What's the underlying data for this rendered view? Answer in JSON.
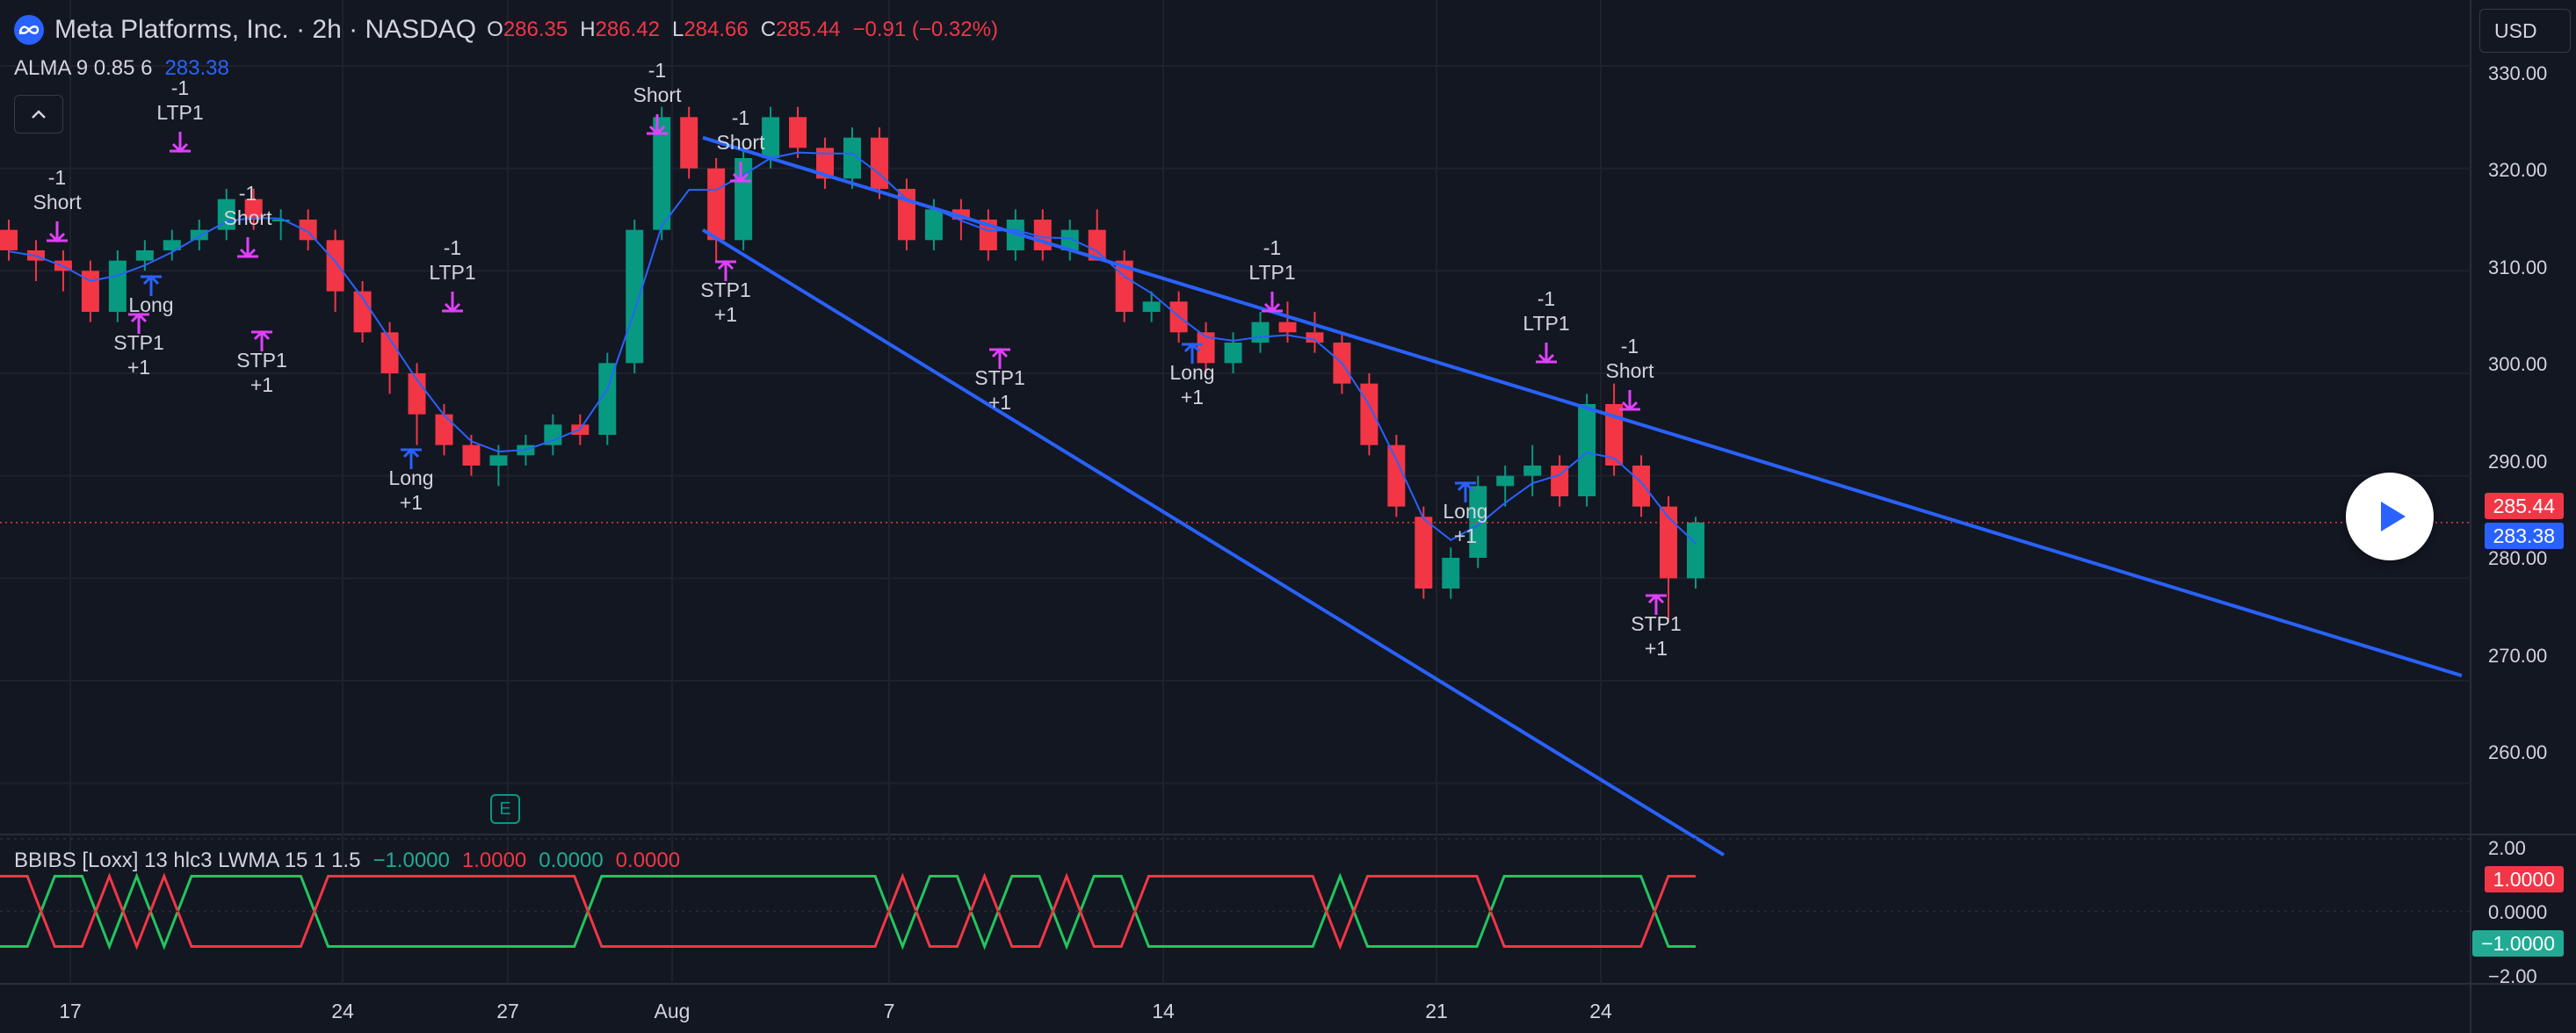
{
  "header": {
    "symbol": "Meta Platforms, Inc. · 2h · NASDAQ",
    "o_label": "O",
    "o_value": "286.35",
    "h_label": "H",
    "h_value": "286.42",
    "l_label": "L",
    "l_value": "284.66",
    "c_label": "C",
    "c_value": "285.44",
    "change": "−0.91 (−0.32%)"
  },
  "indicator1": {
    "name": "ALMA 9 0.85 6",
    "value": "283.38"
  },
  "indicator2": {
    "name": "BBIBS [Loxx] 13 hlc3 LWMA 15 1 1.5",
    "v1": "−1.0000",
    "v2": "1.0000",
    "v3": "0.0000",
    "v4": "0.0000"
  },
  "currency": "USD",
  "price_axis": [
    "330.00",
    "320.00",
    "310.00",
    "300.00",
    "290.00",
    "280.00",
    "270.00",
    "260.00"
  ],
  "price_tags": {
    "last": "285.44",
    "alma": "283.38"
  },
  "osc_axis": [
    "2.00",
    "0.0000",
    "−2.00"
  ],
  "osc_tags": {
    "red": "1.0000",
    "green": "−1.0000"
  },
  "time_axis": [
    "17",
    "24",
    "27",
    "Aug",
    "7",
    "14",
    "21",
    "24"
  ],
  "event_badge": "E",
  "colors": {
    "bg": "#131722",
    "up": "#089981",
    "down": "#f23645",
    "alma": "#2962ff",
    "signal": "#e040fb"
  },
  "chart_data": {
    "type": "candlestick",
    "interval": "2h",
    "candles_ohlc_est": [
      [
        314,
        315,
        311,
        312
      ],
      [
        312,
        313,
        309,
        311
      ],
      [
        311,
        312,
        308,
        310
      ],
      [
        310,
        311,
        305,
        306
      ],
      [
        306,
        312,
        305,
        311
      ],
      [
        311,
        313,
        310,
        312
      ],
      [
        312,
        314,
        311,
        313
      ],
      [
        313,
        315,
        312,
        314
      ],
      [
        314,
        318,
        313,
        317
      ],
      [
        317,
        318,
        314,
        315
      ],
      [
        315,
        316,
        313,
        315
      ],
      [
        315,
        316,
        312,
        313
      ],
      [
        313,
        314,
        306,
        308
      ],
      [
        308,
        309,
        303,
        304
      ],
      [
        304,
        305,
        298,
        300
      ],
      [
        300,
        301,
        293,
        296
      ],
      [
        296,
        297,
        292,
        293
      ],
      [
        293,
        294,
        290,
        291
      ],
      [
        291,
        293,
        289,
        292
      ],
      [
        292,
        294,
        291,
        293
      ],
      [
        293,
        296,
        292,
        295
      ],
      [
        295,
        296,
        293,
        294
      ],
      [
        294,
        302,
        293,
        301
      ],
      [
        301,
        315,
        300,
        314
      ],
      [
        314,
        326,
        313,
        325
      ],
      [
        325,
        326,
        319,
        320
      ],
      [
        320,
        321,
        311,
        313
      ],
      [
        313,
        322,
        312,
        321
      ],
      [
        321,
        326,
        320,
        325
      ],
      [
        325,
        326,
        321,
        322
      ],
      [
        322,
        323,
        318,
        319
      ],
      [
        319,
        324,
        318,
        323
      ],
      [
        323,
        324,
        317,
        318
      ],
      [
        318,
        319,
        312,
        313
      ],
      [
        313,
        317,
        312,
        316
      ],
      [
        316,
        317,
        313,
        315
      ],
      [
        315,
        316,
        311,
        312
      ],
      [
        312,
        316,
        311,
        315
      ],
      [
        315,
        316,
        311,
        312
      ],
      [
        312,
        315,
        311,
        314
      ],
      [
        314,
        316,
        311,
        311
      ],
      [
        311,
        312,
        305,
        306
      ],
      [
        306,
        308,
        305,
        307
      ],
      [
        307,
        308,
        303,
        304
      ],
      [
        304,
        305,
        300,
        301
      ],
      [
        301,
        304,
        300,
        303
      ],
      [
        303,
        306,
        302,
        305
      ],
      [
        305,
        307,
        303,
        304
      ],
      [
        304,
        306,
        302,
        303
      ],
      [
        303,
        304,
        298,
        299
      ],
      [
        299,
        300,
        292,
        293
      ],
      [
        293,
        294,
        286,
        287
      ],
      [
        286,
        287,
        278,
        279
      ],
      [
        279,
        283,
        278,
        282
      ],
      [
        282,
        290,
        281,
        289
      ],
      [
        289,
        291,
        287,
        290
      ],
      [
        290,
        293,
        288,
        291
      ],
      [
        291,
        292,
        287,
        288
      ],
      [
        288,
        298,
        287,
        297
      ],
      [
        297,
        299,
        290,
        291
      ],
      [
        291,
        292,
        286,
        287
      ],
      [
        287,
        288,
        276,
        280
      ],
      [
        280,
        286,
        279,
        285.44
      ]
    ],
    "price_ylim": [
      255,
      333
    ],
    "alma_last": 283.38,
    "trendlines": [
      {
        "from": [
          "Aug 2",
          323
        ],
        "to": [
          "Sep 4",
          270.5
        ]
      },
      {
        "from": [
          "Aug 2",
          314
        ],
        "to": [
          "Aug 25",
          253
        ]
      }
    ],
    "signals": [
      {
        "text": [
          "-1",
          "Short"
        ]
      },
      {
        "text": [
          "-1",
          "LTP1"
        ]
      },
      {
        "text": [
          "-1",
          "Short"
        ]
      },
      {
        "text": [
          "Long"
        ]
      },
      {
        "text": [
          "STP1",
          "+1"
        ]
      },
      {
        "text": [
          "STP1",
          "+1"
        ]
      },
      {
        "text": [
          "-1",
          "LTP1"
        ]
      },
      {
        "text": [
          "Long",
          "+1"
        ]
      },
      {
        "text": [
          "-1",
          "Short"
        ]
      },
      {
        "text": [
          "-1",
          "Short"
        ]
      },
      {
        "text": [
          "STP1",
          "+1"
        ]
      },
      {
        "text": [
          "STP1",
          "+1"
        ]
      },
      {
        "text": [
          "-1",
          "LTP1"
        ]
      },
      {
        "text": [
          "Long",
          "+1"
        ]
      },
      {
        "text": [
          "-1",
          "LTP1"
        ]
      },
      {
        "text": [
          "Long",
          "+1"
        ]
      },
      {
        "text": [
          "-1",
          "Short"
        ]
      },
      {
        "text": [
          "STP1",
          "+1"
        ]
      }
    ],
    "oscillator": {
      "range": [
        -2,
        2
      ],
      "green_state": [
        -1,
        -1,
        1,
        1,
        -1,
        1,
        -1,
        1,
        1,
        1,
        1,
        1,
        -1,
        -1,
        -1,
        -1,
        -1,
        -1,
        -1,
        -1,
        -1,
        -1,
        1,
        1,
        1,
        1,
        1,
        1,
        1,
        1,
        1,
        1,
        1,
        -1,
        1,
        1,
        -1,
        1,
        1,
        -1,
        1,
        1,
        -1,
        -1,
        -1,
        -1,
        -1,
        -1,
        -1,
        1,
        -1,
        -1,
        -1,
        -1,
        -1,
        1,
        1,
        1,
        1,
        1,
        1,
        -1,
        -1
      ]
    }
  }
}
